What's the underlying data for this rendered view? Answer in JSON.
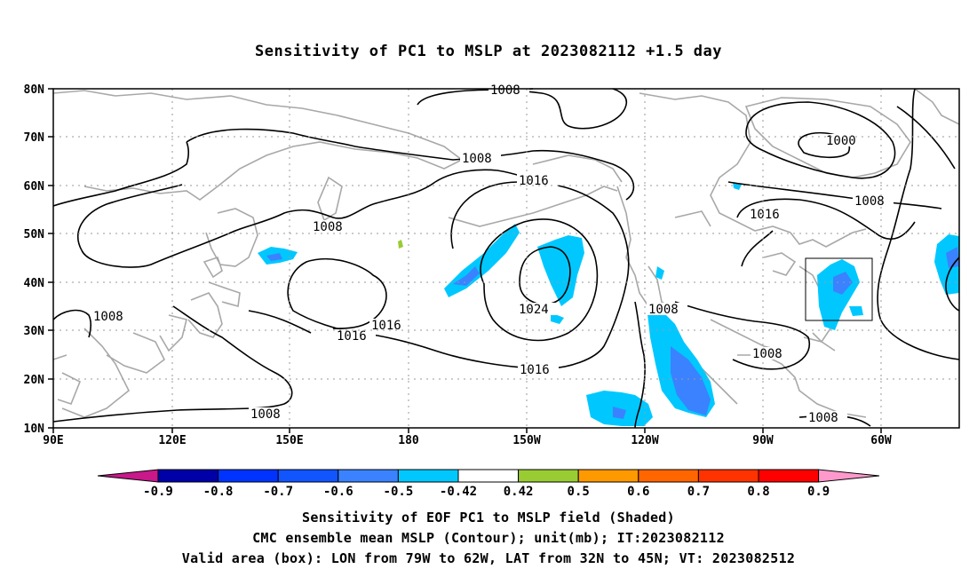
{
  "title": "Sensitivity of PC1 to MSLP at 2023082112 +1.5 day",
  "lat_ticks": [
    "80N",
    "70N",
    "60N",
    "50N",
    "40N",
    "30N",
    "20N",
    "10N"
  ],
  "lon_ticks": [
    "90E",
    "120E",
    "150E",
    "180",
    "150W",
    "120W",
    "90W",
    "60W"
  ],
  "contour_labels": {
    "c1008_top": "1008",
    "c1008_a": "1008",
    "c1008_b": "1008",
    "c1008_c": "1008",
    "c1008_d": "1008",
    "c1008_e": "1008",
    "c1008_f": "1008",
    "c1008_g": "1008",
    "c1008_h": "1008",
    "c1000": "1000",
    "c1016_a": "1016",
    "c1016_b": "1016",
    "c1016_c": "1016",
    "c1016_d": "1016",
    "c1016_e": "1016",
    "c1024": "1024"
  },
  "colorbar": {
    "labels": [
      "-0.9",
      "-0.8",
      "-0.7",
      "-0.6",
      "-0.5",
      "-0.42",
      "0.42",
      "0.5",
      "0.6",
      "0.7",
      "0.8",
      "0.9"
    ],
    "colors": [
      "#0000a8",
      "#0033ff",
      "#1155ff",
      "#3a82ff",
      "#00c8ff",
      "#ffffff",
      "#99cc33",
      "#ff9900",
      "#ff6600",
      "#ff3300",
      "#ff0000"
    ],
    "low_color": "#c8188a",
    "high_color": "#ff99cc"
  },
  "captions": {
    "line1": "Sensitivity of EOF PC1 to MSLP field (Shaded)",
    "line2": "CMC ensemble mean MSLP (Contour); unit(mb); IT:2023082112",
    "line3": "Valid area (box): LON from 79W to 62W, LAT from 32N to 45N; VT: 2023082512"
  },
  "valid_box": {
    "lon_from": "79W",
    "lon_to": "62W",
    "lat_from": "32N",
    "lat_to": "45N"
  }
}
